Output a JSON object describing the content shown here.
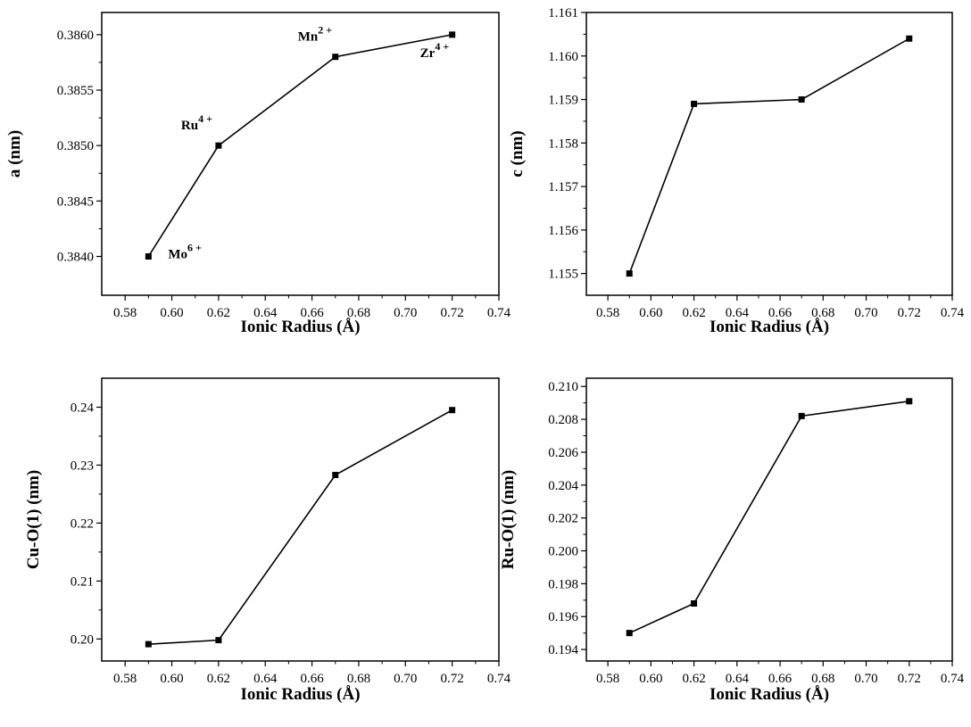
{
  "chart_data": [
    {
      "type": "line",
      "panel": "top-left",
      "xlabel": "Ionic Radius (Å)",
      "ylabel": "a (nm)",
      "xlim": [
        0.57,
        0.74
      ],
      "ylim": [
        0.38365,
        0.3862
      ],
      "xticks": [
        0.58,
        0.6,
        0.62,
        0.64,
        0.66,
        0.68,
        0.7,
        0.72,
        0.74
      ],
      "yticks": [
        0.384,
        0.3845,
        0.385,
        0.3855,
        0.386
      ],
      "x_decimals": 2,
      "y_decimals": 4,
      "series": [
        {
          "x": [
            0.59,
            0.62,
            0.67,
            0.72
          ],
          "y": [
            0.384,
            0.385,
            0.3858,
            0.386
          ]
        }
      ],
      "annotations": [
        {
          "base": "Mo",
          "sup": "6 +",
          "x": 0.59,
          "y": 0.384,
          "pos": "right"
        },
        {
          "base": "Ru",
          "sup": "4 +",
          "x": 0.62,
          "y": 0.385,
          "pos": "upper-left"
        },
        {
          "base": "Mn",
          "sup": "2 +",
          "x": 0.67,
          "y": 0.3858,
          "pos": "upper-left"
        },
        {
          "base": "Zr",
          "sup": "4 +",
          "x": 0.72,
          "y": 0.386,
          "pos": "lower-left"
        }
      ],
      "grid": false,
      "legend": "none"
    },
    {
      "type": "line",
      "panel": "top-right",
      "xlabel": "Ionic Radius (Å)",
      "ylabel": "c (nm)",
      "xlim": [
        0.57,
        0.74
      ],
      "ylim": [
        1.1545,
        1.161
      ],
      "xticks": [
        0.58,
        0.6,
        0.62,
        0.64,
        0.66,
        0.68,
        0.7,
        0.72,
        0.74
      ],
      "yticks": [
        1.155,
        1.156,
        1.157,
        1.158,
        1.159,
        1.16,
        1.161
      ],
      "x_decimals": 2,
      "y_decimals": 3,
      "series": [
        {
          "x": [
            0.59,
            0.62,
            0.67,
            0.72
          ],
          "y": [
            1.155,
            1.1589,
            1.159,
            1.1604
          ]
        }
      ],
      "grid": false,
      "legend": "none"
    },
    {
      "type": "line",
      "panel": "bottom-left",
      "xlabel": "Ionic Radius (Å)",
      "ylabel": "Cu-O(1) (nm)",
      "xlim": [
        0.57,
        0.74
      ],
      "ylim": [
        0.1962,
        0.245
      ],
      "xticks": [
        0.58,
        0.6,
        0.62,
        0.64,
        0.66,
        0.68,
        0.7,
        0.72,
        0.74
      ],
      "yticks": [
        0.2,
        0.21,
        0.22,
        0.23,
        0.24
      ],
      "x_decimals": 2,
      "y_decimals": 2,
      "series": [
        {
          "x": [
            0.59,
            0.62,
            0.67,
            0.72
          ],
          "y": [
            0.1991,
            0.1998,
            0.2283,
            0.2395
          ]
        }
      ],
      "grid": false,
      "legend": "none"
    },
    {
      "type": "line",
      "panel": "bottom-right",
      "xlabel": "Ionic Radius (Å)",
      "ylabel": "Ru-O(1) (nm)",
      "xlim": [
        0.57,
        0.74
      ],
      "ylim": [
        0.1933,
        0.2105
      ],
      "xticks": [
        0.58,
        0.6,
        0.62,
        0.64,
        0.66,
        0.68,
        0.7,
        0.72,
        0.74
      ],
      "yticks": [
        0.194,
        0.196,
        0.198,
        0.2,
        0.202,
        0.204,
        0.206,
        0.208,
        0.21
      ],
      "x_decimals": 2,
      "y_decimals": 3,
      "series": [
        {
          "x": [
            0.59,
            0.62,
            0.67,
            0.72
          ],
          "y": [
            0.195,
            0.1968,
            0.2082,
            0.2091
          ]
        }
      ],
      "grid": false,
      "legend": "none"
    }
  ]
}
